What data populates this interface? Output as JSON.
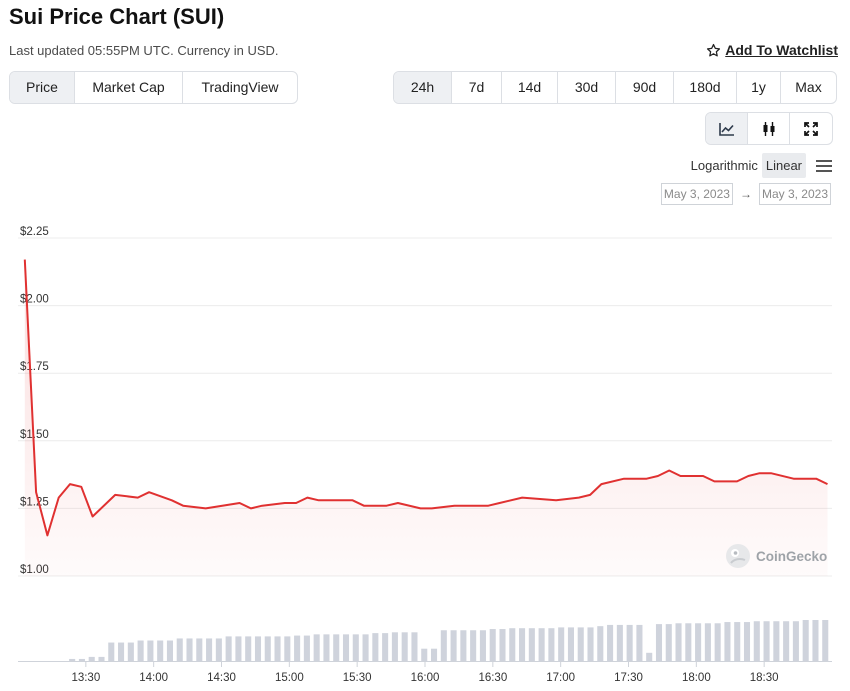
{
  "header": {
    "title": "Sui Price Chart (SUI)",
    "subtitle": "Last updated 05:55PM UTC. Currency in USD.",
    "watchlist_label": "Add To Watchlist",
    "watchlist_icon": "star-icon"
  },
  "tabs": [
    {
      "label": "Price",
      "active": true
    },
    {
      "label": "Market Cap",
      "active": false
    },
    {
      "label": "TradingView",
      "active": false
    }
  ],
  "ranges": [
    {
      "label": "24h",
      "active": true
    },
    {
      "label": "7d",
      "active": false
    },
    {
      "label": "14d",
      "active": false
    },
    {
      "label": "30d",
      "active": false
    },
    {
      "label": "90d",
      "active": false
    },
    {
      "label": "180d",
      "active": false
    },
    {
      "label": "1y",
      "active": false
    },
    {
      "label": "Max",
      "active": false
    }
  ],
  "chart_types": [
    {
      "icon": "line-chart-icon",
      "active": true
    },
    {
      "icon": "candlestick-icon",
      "active": false
    },
    {
      "icon": "expand-icon",
      "active": false
    }
  ],
  "scale": {
    "logarithmic_label": "Logarithmic",
    "linear_label": "Linear",
    "selected": "Linear",
    "menu_icon": "menu-icon"
  },
  "date_range": {
    "from": "May 3, 2023",
    "to": "May 3, 2023",
    "arrow": "→"
  },
  "watermark": "CoinGecko",
  "colors": {
    "line": "#e03131",
    "volume": "#cfd3dc",
    "grid": "#ececec"
  },
  "chart_data": {
    "type": "line",
    "title": "",
    "xlabel": "",
    "ylabel": "",
    "ylim": [
      1.0,
      2.25
    ],
    "xlim": [
      "13:00",
      "19:00"
    ],
    "yticks": [
      {
        "value": 2.25,
        "label": "$2.25"
      },
      {
        "value": 2.0,
        "label": "$2.00"
      },
      {
        "value": 1.75,
        "label": "$1.75"
      },
      {
        "value": 1.5,
        "label": "$1.50"
      },
      {
        "value": 1.25,
        "label": "$1.25"
      },
      {
        "value": 1.0,
        "label": "$1.00"
      }
    ],
    "xticks": [
      "13:30",
      "14:00",
      "14:30",
      "15:00",
      "15:30",
      "16:00",
      "16:30",
      "17:00",
      "17:30",
      "18:00",
      "18:30"
    ],
    "grid": true,
    "series": [
      {
        "values": [
          [
            "13:03",
            2.17
          ],
          [
            "13:08",
            1.31
          ],
          [
            "13:13",
            1.15
          ],
          [
            "13:18",
            1.29
          ],
          [
            "13:23",
            1.34
          ],
          [
            "13:28",
            1.33
          ],
          [
            "13:33",
            1.22
          ],
          [
            "13:43",
            1.3
          ],
          [
            "13:53",
            1.29
          ],
          [
            "13:58",
            1.31
          ],
          [
            "14:08",
            1.28
          ],
          [
            "14:13",
            1.26
          ],
          [
            "14:23",
            1.25
          ],
          [
            "14:38",
            1.27
          ],
          [
            "14:43",
            1.25
          ],
          [
            "14:48",
            1.26
          ],
          [
            "14:58",
            1.27
          ],
          [
            "15:03",
            1.27
          ],
          [
            "15:08",
            1.29
          ],
          [
            "15:13",
            1.28
          ],
          [
            "15:28",
            1.28
          ],
          [
            "15:33",
            1.26
          ],
          [
            "15:43",
            1.26
          ],
          [
            "15:48",
            1.27
          ],
          [
            "15:58",
            1.25
          ],
          [
            "16:03",
            1.25
          ],
          [
            "16:13",
            1.26
          ],
          [
            "16:28",
            1.26
          ],
          [
            "16:33",
            1.27
          ],
          [
            "16:43",
            1.29
          ],
          [
            "16:58",
            1.28
          ],
          [
            "17:08",
            1.29
          ],
          [
            "17:13",
            1.3
          ],
          [
            "17:18",
            1.34
          ],
          [
            "17:28",
            1.36
          ],
          [
            "17:38",
            1.36
          ],
          [
            "17:43",
            1.37
          ],
          [
            "17:48",
            1.39
          ],
          [
            "17:53",
            1.37
          ],
          [
            "18:03",
            1.37
          ],
          [
            "18:08",
            1.35
          ],
          [
            "18:18",
            1.35
          ],
          [
            "18:23",
            1.37
          ],
          [
            "18:28",
            1.38
          ],
          [
            "18:33",
            1.38
          ],
          [
            "18:43",
            1.36
          ],
          [
            "18:48",
            1.36
          ],
          [
            "18:53",
            1.36
          ],
          [
            "18:58",
            1.34
          ]
        ]
      }
    ],
    "volume": [
      0.0,
      0.0,
      0.0,
      0.0,
      0.05,
      0.05,
      0.1,
      0.1,
      0.45,
      0.45,
      0.45,
      0.5,
      0.5,
      0.5,
      0.5,
      0.55,
      0.55,
      0.55,
      0.55,
      0.55,
      0.6,
      0.6,
      0.6,
      0.6,
      0.6,
      0.6,
      0.6,
      0.62,
      0.62,
      0.65,
      0.65,
      0.65,
      0.65,
      0.65,
      0.65,
      0.68,
      0.68,
      0.7,
      0.7,
      0.7,
      0.3,
      0.3,
      0.75,
      0.75,
      0.75,
      0.75,
      0.75,
      0.78,
      0.78,
      0.8,
      0.8,
      0.8,
      0.8,
      0.8,
      0.82,
      0.82,
      0.82,
      0.82,
      0.85,
      0.88,
      0.88,
      0.88,
      0.88,
      0.2,
      0.9,
      0.9,
      0.92,
      0.92,
      0.92,
      0.92,
      0.92,
      0.95,
      0.95,
      0.95,
      0.97,
      0.97,
      0.97,
      0.97,
      0.97,
      1.0,
      1.0,
      1.0
    ]
  }
}
